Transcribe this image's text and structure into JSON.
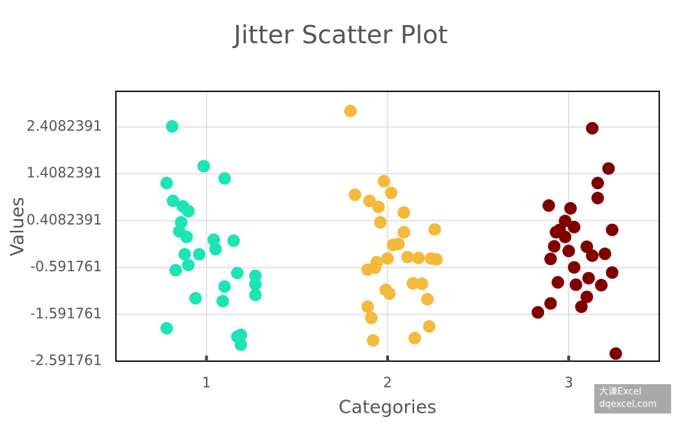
{
  "chart_data": {
    "type": "scatter",
    "title": "Jitter Scatter Plot",
    "xlabel": "Categories",
    "ylabel": "Values",
    "xlim": [
      0.5,
      3.5
    ],
    "xticks": [
      1,
      2,
      3
    ],
    "ylim": [
      -2.591761,
      3.168
    ],
    "yticks": [
      2.4082391,
      1.4082391,
      0.4082391,
      -0.591761,
      -1.591761,
      -2.591761
    ],
    "grid": true,
    "series": [
      {
        "color": "#1de4b4",
        "x": [
          0.81,
          0.985,
          0.78,
          1.1,
          0.815,
          0.87,
          0.9,
          0.86,
          0.85,
          0.89,
          1.04,
          1.05,
          1.15,
          0.88,
          0.96,
          0.9,
          0.83,
          1.17,
          1.27,
          1.27,
          1.1,
          0.94,
          1.09,
          1.27,
          0.78,
          1.19,
          1.17,
          1.19
        ],
        "values": [
          2.42,
          1.57,
          1.21,
          1.31,
          0.83,
          0.71,
          0.61,
          0.37,
          0.18,
          0.06,
          0.0,
          -0.2,
          -0.02,
          -0.31,
          -0.31,
          -0.54,
          -0.65,
          -0.71,
          -0.77,
          -0.95,
          -1.0,
          -1.25,
          -1.31,
          -1.18,
          -1.89,
          -2.03,
          -2.07,
          -2.24
        ]
      },
      {
        "color": "#f5b93b",
        "x": [
          1.795,
          1.82,
          1.98,
          2.02,
          1.9,
          1.95,
          2.09,
          1.96,
          2.26,
          2.09,
          2.03,
          2.06,
          2.0,
          2.11,
          2.17,
          2.24,
          2.27,
          1.94,
          1.93,
          1.89,
          1.99,
          2.01,
          2.14,
          2.19,
          2.22,
          1.89,
          1.91,
          2.23,
          2.15,
          1.92
        ],
        "values": [
          2.75,
          0.96,
          1.25,
          1.0,
          0.83,
          0.7,
          0.58,
          0.37,
          0.22,
          0.16,
          -0.11,
          -0.09,
          -0.4,
          -0.37,
          -0.39,
          -0.4,
          -0.42,
          -0.48,
          -0.6,
          -0.64,
          -1.07,
          -1.15,
          -0.93,
          -0.94,
          -1.27,
          -1.43,
          -1.67,
          -1.85,
          -2.1,
          -2.15
        ]
      },
      {
        "color": "#800000",
        "x": [
          3.13,
          3.22,
          3.16,
          3.16,
          2.89,
          3.01,
          2.98,
          3.03,
          2.95,
          3.24,
          2.98,
          2.93,
          2.92,
          3.1,
          3.0,
          3.2,
          3.13,
          2.9,
          3.03,
          3.24,
          2.94,
          3.11,
          3.04,
          3.18,
          3.1,
          2.9,
          3.07,
          2.83,
          3.26
        ],
        "values": [
          2.38,
          1.52,
          1.21,
          0.89,
          0.73,
          0.67,
          0.4,
          0.27,
          0.21,
          0.21,
          0.06,
          0.16,
          -0.14,
          -0.15,
          -0.24,
          -0.3,
          -0.34,
          -0.41,
          -0.59,
          -0.7,
          -0.91,
          -0.82,
          -0.96,
          -0.97,
          -1.22,
          -1.36,
          -1.43,
          -1.55,
          -2.43
        ]
      }
    ]
  },
  "watermark": {
    "line1": "大谦Excel",
    "line2": "dqexcel.com"
  }
}
